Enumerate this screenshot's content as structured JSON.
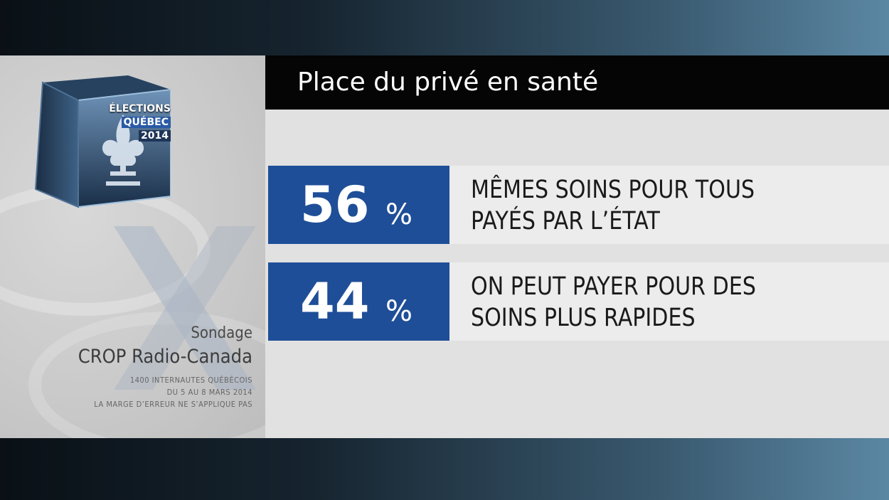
{
  "logo": {
    "line1": "ÉLECTIONS",
    "line2": "QUÉBEC",
    "line3": "2014"
  },
  "title": "Place du privé en santé",
  "results": [
    {
      "percent": "56",
      "unit": "%",
      "label_line1": "MÊMES SOINS POUR TOUS",
      "label_line2": "PAYÉS PAR L’ÉTAT"
    },
    {
      "percent": "44",
      "unit": "%",
      "label_line1": "ON PEUT PAYER POUR DES",
      "label_line2": "SOINS PLUS RAPIDES"
    }
  ],
  "source": {
    "title": "Sondage",
    "name": "CROP Radio-Canada",
    "note1": "1400 INTERNAUTES QUÉBÉCOIS",
    "note2": "DU 5 AU 8 MARS 2014",
    "note3": "LA MARGE D’ERREUR NE S’APPLIQUE PAS"
  },
  "colors": {
    "accent_blue": "#1f4e98",
    "title_bar": "#050505",
    "panel": "#e1e1e1"
  }
}
